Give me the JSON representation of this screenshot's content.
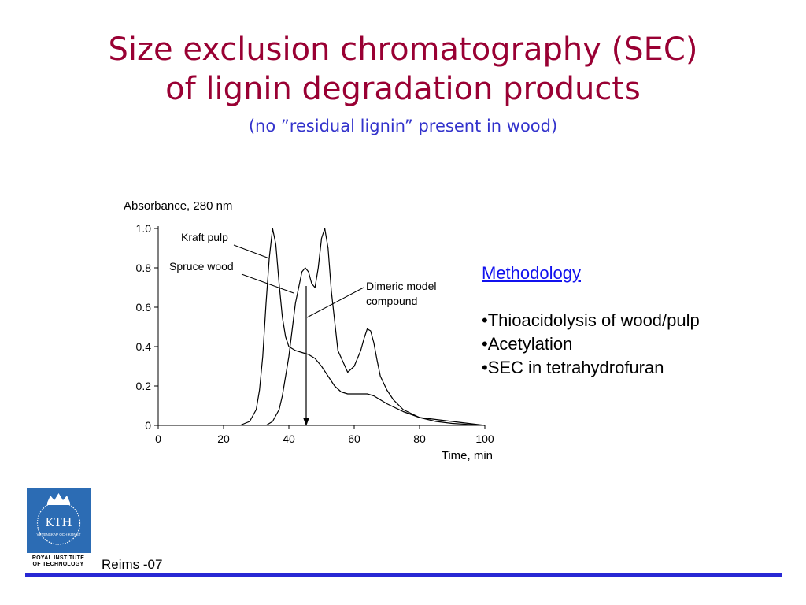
{
  "slide": {
    "title_line1": "Size exclusion chromatography (SEC)",
    "title_line2": "of lignin degradation products",
    "subtitle": "(no ”residual lignin” present in wood)",
    "footer": "Reims -07"
  },
  "methodology": {
    "heading": "Methodology",
    "items": [
      "•Thioacidolysis of wood/pulp",
      "•Acetylation",
      "•SEC in tetrahydrofuran"
    ]
  },
  "logo": {
    "text": "KTH",
    "motto": "VETENSKAP OCH KONST",
    "caption_line1": "ROYAL INSTITUTE",
    "caption_line2": "OF TECHNOLOGY",
    "color": "#2c6cb4",
    "icon": "kth-crown-seal-icon"
  },
  "colors": {
    "title": "#990033",
    "subtitle": "#3333cc",
    "link": "#1111ee",
    "rule": "#2828d4"
  },
  "chart_data": {
    "type": "line",
    "ylabel": "Absorbance, 280 nm",
    "xlabel": "Time, min",
    "xlim": [
      0,
      100
    ],
    "ylim": [
      0,
      1.0
    ],
    "xticks": [
      0,
      20,
      40,
      60,
      80,
      100
    ],
    "xtick_labels": [
      "0",
      "20",
      "40",
      "60",
      "80",
      "100"
    ],
    "yticks": [
      0,
      0.2,
      0.4,
      0.6,
      0.8,
      1.0
    ],
    "ytick_labels": [
      "0",
      "0.2",
      "0.4",
      "0.6",
      "0.8",
      "1.0"
    ],
    "grid": false,
    "series": [
      {
        "name": "Kraft pulp",
        "x": [
          25,
          28,
          30,
          31,
          32,
          33,
          34,
          35,
          36,
          37,
          38,
          39,
          40,
          42,
          44,
          46,
          48,
          50,
          52,
          54,
          56,
          58,
          60,
          62,
          64,
          66,
          68,
          70,
          75,
          80,
          85,
          90,
          95,
          100
        ],
        "y": [
          0,
          0.02,
          0.08,
          0.18,
          0.35,
          0.62,
          0.85,
          1.0,
          0.92,
          0.72,
          0.55,
          0.45,
          0.4,
          0.38,
          0.37,
          0.36,
          0.34,
          0.3,
          0.25,
          0.2,
          0.17,
          0.16,
          0.16,
          0.16,
          0.16,
          0.15,
          0.13,
          0.11,
          0.07,
          0.04,
          0.03,
          0.02,
          0.01,
          0
        ]
      },
      {
        "name": "Spruce wood",
        "x": [
          33,
          35,
          37,
          38,
          40,
          42,
          44,
          45,
          46,
          47,
          48,
          49,
          50,
          51,
          52,
          53,
          55,
          58,
          60,
          62,
          63,
          64,
          65,
          66,
          67,
          68,
          70,
          72,
          75,
          80,
          85,
          90,
          95,
          100
        ],
        "y": [
          0,
          0.02,
          0.08,
          0.15,
          0.35,
          0.62,
          0.78,
          0.8,
          0.78,
          0.72,
          0.7,
          0.8,
          0.95,
          1.0,
          0.9,
          0.68,
          0.38,
          0.27,
          0.3,
          0.38,
          0.44,
          0.49,
          0.48,
          0.42,
          0.33,
          0.25,
          0.18,
          0.13,
          0.08,
          0.04,
          0.02,
          0.01,
          0.005,
          0
        ]
      }
    ],
    "annotations": [
      {
        "text": "Kraft pulp",
        "points_to_x": 34,
        "points_to_y": 0.85
      },
      {
        "text": "Spruce wood",
        "points_to_x": 42,
        "points_to_y": 0.66
      },
      {
        "text_line1": "Dimeric model",
        "text_line2": "compound",
        "points_to_x": 45,
        "points_to_y": 0.55,
        "arrow_x": 45
      }
    ]
  }
}
